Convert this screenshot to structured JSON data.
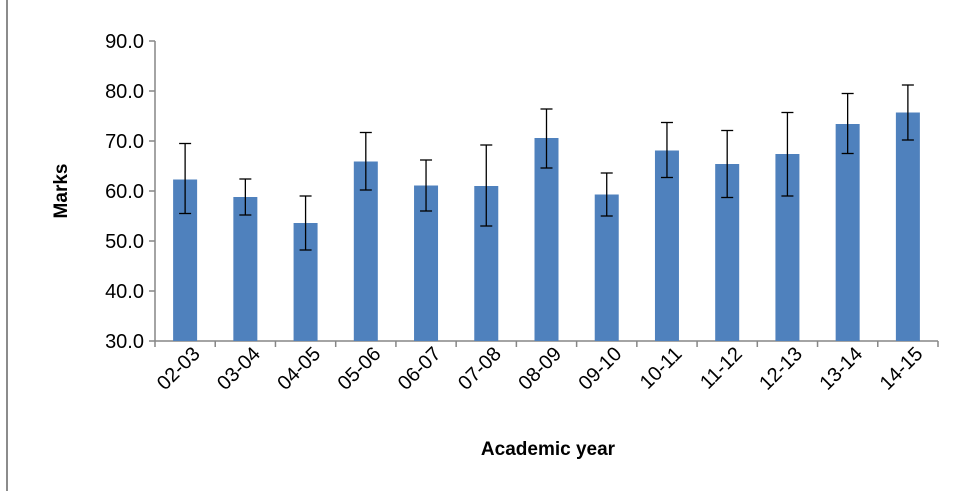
{
  "chart_data": {
    "type": "bar",
    "title": "",
    "xlabel": "Academic year",
    "ylabel": "Marks",
    "ylim": [
      30,
      90
    ],
    "yticks": [
      "30.0",
      "40.0",
      "50.0",
      "60.0",
      "70.0",
      "80.0",
      "90.0"
    ],
    "grid": false,
    "legend": "none",
    "bar_color": "#4f81bd",
    "categories": [
      "02-03",
      "03-04",
      "04-05",
      "05-06",
      "06-07",
      "07-08",
      "08-09",
      "09-10",
      "10-11",
      "11-12",
      "12-13",
      "13-14",
      "14-15"
    ],
    "values": [
      62.3,
      58.8,
      53.6,
      65.9,
      61.1,
      61.0,
      70.6,
      59.3,
      68.1,
      65.4,
      67.4,
      73.4,
      75.7
    ],
    "error_low": [
      55.5,
      55.2,
      48.2,
      60.2,
      56.0,
      53.0,
      64.6,
      55.0,
      62.7,
      58.7,
      59.0,
      67.5,
      70.2
    ],
    "error_high": [
      69.5,
      62.4,
      59.0,
      71.7,
      66.2,
      69.2,
      76.4,
      63.6,
      73.7,
      72.1,
      75.7,
      79.5,
      81.2
    ]
  }
}
